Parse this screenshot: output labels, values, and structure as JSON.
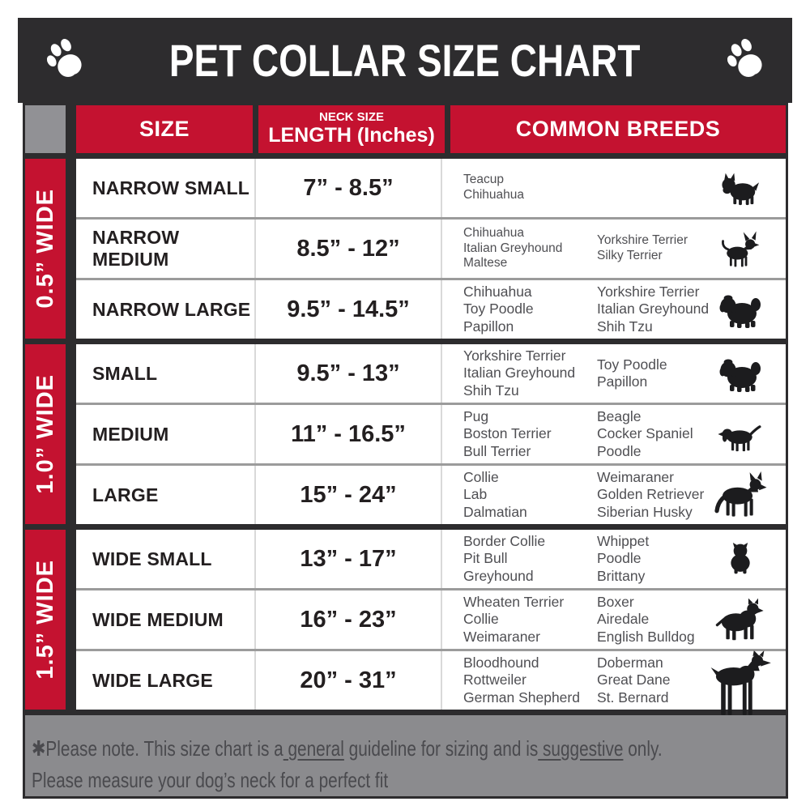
{
  "title": "PET COLLAR SIZE CHART",
  "colors": {
    "accent_red": "#c41230",
    "bar_dark": "#2d2c2e",
    "corner_gray": "#919195",
    "footer_gray": "#8b8b8e",
    "silhouette_black": "#1c1c1e"
  },
  "header": {
    "size": "SIZE",
    "neck_line1": "NECK SIZE",
    "neck_line2": "LENGTH (Inches)",
    "breeds": "COMMON BREEDS"
  },
  "groups": [
    {
      "width_label": "0.5” WIDE",
      "rows": [
        {
          "size": "NARROW SMALL",
          "neck": "7” - 8.5”",
          "breeds_col1": [
            "Teacup",
            "Chihuahua"
          ],
          "breeds_col2": [],
          "icon": "yorkie-icon"
        },
        {
          "size": "NARROW MEDIUM",
          "neck": "8.5” - 12”",
          "breeds_col1": [
            "Chihuahua",
            "Italian Greyhound",
            "Maltese"
          ],
          "breeds_col2": [
            "Yorkshire Terrier",
            "Silky Terrier"
          ],
          "icon": "chihuahua-icon"
        },
        {
          "size": "NARROW LARGE",
          "neck": "9.5” - 14.5”",
          "breeds_col1": [
            "Chihuahua",
            "Toy Poodle",
            "Papillon"
          ],
          "breeds_col2": [
            "Yorkshire Terrier",
            "Italian Greyhound",
            "Shih Tzu"
          ],
          "icon": "shih-tzu-icon"
        }
      ]
    },
    {
      "width_label": "1.0” WIDE",
      "rows": [
        {
          "size": "SMALL",
          "neck": "9.5” - 13”",
          "breeds_col1": [
            "Yorkshire Terrier",
            "Italian Greyhound",
            "Shih Tzu"
          ],
          "breeds_col2": [
            "Toy Poodle",
            "Papillon"
          ],
          "icon": "shih-tzu-icon"
        },
        {
          "size": "MEDIUM",
          "neck": "11” - 16.5”",
          "breeds_col1": [
            "Pug",
            "Boston Terrier",
            "Bull Terrier"
          ],
          "breeds_col2": [
            "Beagle",
            "Cocker Spaniel",
            "Poodle"
          ],
          "icon": "beagle-icon"
        },
        {
          "size": "LARGE",
          "neck": "15” - 24”",
          "breeds_col1": [
            "Collie",
            "Lab",
            "Dalmatian"
          ],
          "breeds_col2": [
            "Weimaraner",
            "Golden Retriever",
            "Siberian Husky"
          ],
          "icon": "german-shepherd-icon"
        }
      ]
    },
    {
      "width_label": "1.5” WIDE",
      "rows": [
        {
          "size": "WIDE SMALL",
          "neck": "13” - 17”",
          "breeds_col1": [
            "Border Collie",
            "Pit Bull",
            "Greyhound"
          ],
          "breeds_col2": [
            "Whippet",
            "Poodle",
            "Brittany"
          ],
          "icon": "bulldog-icon"
        },
        {
          "size": "WIDE MEDIUM",
          "neck": "16” - 23”",
          "breeds_col1": [
            "Wheaten Terrier",
            "Collie",
            "Weimaraner"
          ],
          "breeds_col2": [
            "Boxer",
            "Airedale",
            "English Bulldog"
          ],
          "icon": "pit-bull-icon"
        },
        {
          "size": "WIDE LARGE",
          "neck": "20” - 31”",
          "breeds_col1": [
            "Bloodhound",
            "Rottweiler",
            "German Shepherd"
          ],
          "breeds_col2": [
            "Doberman",
            "Great Dane",
            "St. Bernard"
          ],
          "icon": "doberman-icon"
        }
      ]
    }
  ],
  "footer": {
    "note_parts": [
      {
        "text": "✱Please note. This size chart is a",
        "underline": false
      },
      {
        "text": " general",
        "underline": true
      },
      {
        "text": " guideline for sizing and is",
        "underline": false
      },
      {
        "text": " suggestive",
        "underline": true
      },
      {
        "text": " only.",
        "underline": false
      }
    ],
    "line2": "Please measure your dog’s neck for a perfect fit"
  }
}
